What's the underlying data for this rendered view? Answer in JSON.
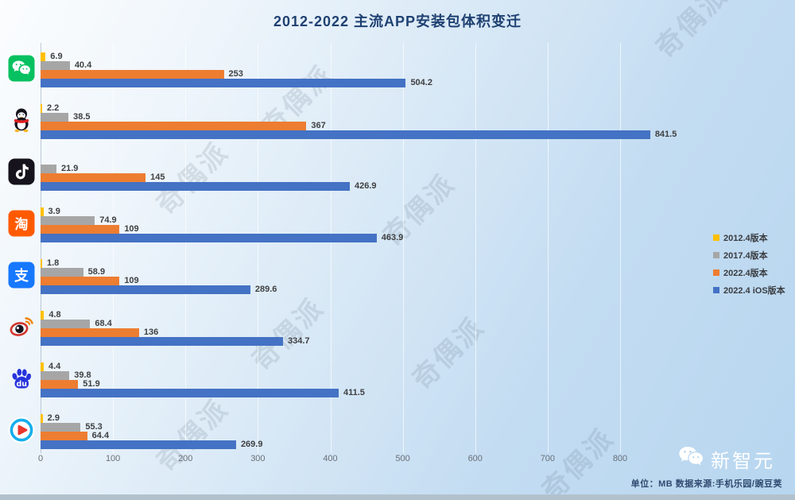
{
  "title": "2012-2022 主流APP安装包体积变迁",
  "watermark": {
    "text": "奇偶派"
  },
  "colors": {
    "title_text": "#1F4172",
    "background_top": "#FBFDFE",
    "background_bottom": "#B7D6EF",
    "bottom_strip": "#B2C2CD",
    "value_label": "#3F4042"
  },
  "chart_data": {
    "type": "bar",
    "orientation": "horizontal",
    "title": "2012-2022 主流APP安装包体积变迁",
    "unit": "MB",
    "xlim": [
      0,
      800
    ],
    "x_ticks": [
      "0",
      "100",
      "200",
      "300",
      "400",
      "500",
      "600",
      "700",
      "800"
    ],
    "grid": true,
    "legend_position": "middle-right",
    "series": [
      {
        "name": "2012.4版本",
        "color": "#FFC000"
      },
      {
        "name": "2017.4版本",
        "color": "#A6A6A6"
      },
      {
        "name": "2022.4版本",
        "color": "#ED7D31"
      },
      {
        "name": "2022.4 iOS版本",
        "color": "#4472C4"
      }
    ],
    "categories": [
      {
        "app": "微信",
        "icon": "wechat-icon",
        "values": [
          "6.9",
          "40.4",
          "253",
          "504.2"
        ]
      },
      {
        "app": "QQ",
        "icon": "qq-icon",
        "values": [
          "2.2",
          "38.5",
          "367",
          "841.5"
        ]
      },
      {
        "app": "抖音",
        "icon": "douyin-icon",
        "values": [
          null,
          "21.9",
          "145",
          "426.9"
        ]
      },
      {
        "app": "淘宝",
        "icon": "taobao-icon",
        "values": [
          "3.9",
          "74.9",
          "109",
          "463.9"
        ]
      },
      {
        "app": "支付宝",
        "icon": "alipay-icon",
        "values": [
          "1.8",
          "58.9",
          "109",
          "289.6"
        ]
      },
      {
        "app": "微博",
        "icon": "weibo-icon",
        "values": [
          "4.8",
          "68.4",
          "136",
          "334.7"
        ]
      },
      {
        "app": "百度",
        "icon": "baidu-icon",
        "values": [
          "4.4",
          "39.8",
          "51.9",
          "411.5"
        ]
      },
      {
        "app": "优酷",
        "icon": "youku-icon",
        "values": [
          "2.9",
          "55.3",
          "64.4",
          "269.9"
        ]
      }
    ]
  },
  "footer": {
    "brand": "新智元",
    "brand_icon": "wechat-logo-icon",
    "unit_source": "单位：MB  数据来源:手机乐园/豌豆荚"
  }
}
